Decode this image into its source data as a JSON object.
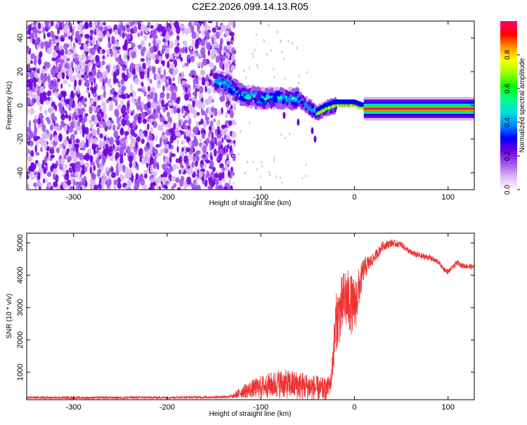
{
  "title": "C2E2.2026.099.14.13.R05",
  "chart_data": [
    {
      "type": "heatmap",
      "name": "spectrogram",
      "xlabel": "Height of straight line (km)",
      "ylabel": "Frequency (Hz)",
      "xlim": [
        -350,
        128
      ],
      "ylim": [
        -50,
        50
      ],
      "xticks": [
        -300,
        -200,
        -100,
        0,
        100
      ],
      "yticks": [
        -40,
        -20,
        0,
        20,
        40
      ],
      "colorbar": {
        "label": "Normalized spectral amplitude",
        "range": [
          0.0,
          1.0
        ],
        "ticks": [
          0.0,
          0.2,
          0.4,
          0.6,
          0.8
        ],
        "colors": [
          "#ffffff",
          "#d9b8f5",
          "#a054f0",
          "#7000e0",
          "#0000ff",
          "#0090ff",
          "#00e0e0",
          "#00ff80",
          "#00ff00",
          "#a0ff00",
          "#ffff00",
          "#ff9000",
          "#ff0000",
          "#ff0070"
        ]
      },
      "regions": [
        {
          "description": "noise",
          "x": [
            -350,
            -140
          ],
          "freq": [
            -50,
            50
          ],
          "amplitude": [
            0.0,
            0.15
          ]
        },
        {
          "description": "scattered signal",
          "x": [
            -140,
            -20
          ],
          "freq": [
            -20,
            15
          ],
          "amplitude": [
            0.1,
            0.5
          ]
        },
        {
          "description": "carrier",
          "x": [
            0,
            128
          ],
          "freq": [
            -2,
            2
          ],
          "amplitude": [
            0.9,
            1.0
          ]
        }
      ],
      "ridge": {
        "x": [
          -150,
          -135,
          -120,
          -100,
          -80,
          -60,
          -50,
          -40,
          -30,
          -20,
          -10,
          0,
          10,
          128
        ],
        "freq": [
          15,
          12,
          6,
          4,
          4,
          4,
          0,
          -5,
          -2,
          0,
          0,
          0,
          -2,
          -2
        ]
      }
    },
    {
      "type": "line",
      "name": "snr",
      "xlabel": "Height of straight line (km)",
      "ylabel": "SNR (10 * v/v)",
      "xlim": [
        -350,
        128
      ],
      "ylim": [
        150,
        5300
      ],
      "xticks": [
        -300,
        -200,
        -100,
        0,
        100
      ],
      "yticks": [
        1000,
        2000,
        3000,
        4000,
        5000
      ],
      "series": [
        {
          "name": "SNR",
          "color": "#ee3333",
          "x": [
            -350,
            -300,
            -250,
            -200,
            -150,
            -130,
            -120,
            -100,
            -80,
            -60,
            -40,
            -30,
            -25,
            -20,
            -10,
            0,
            10,
            20,
            30,
            40,
            50,
            60,
            70,
            80,
            90,
            95,
            100,
            105,
            110,
            115,
            128
          ],
          "y": [
            220,
            210,
            215,
            220,
            230,
            250,
            400,
            550,
            650,
            600,
            500,
            450,
            700,
            2500,
            3300,
            3000,
            4200,
            4500,
            4900,
            5000,
            4950,
            4700,
            4600,
            4550,
            4400,
            4200,
            4100,
            4250,
            4400,
            4300,
            4250
          ],
          "noise_amplitude": [
            40,
            40,
            40,
            40,
            40,
            60,
            200,
            350,
            450,
            450,
            400,
            350,
            300,
            900,
            1000,
            900,
            350,
            180,
            150,
            120,
            100,
            100,
            100,
            90,
            80,
            80,
            80,
            80,
            80,
            80,
            80
          ]
        }
      ]
    }
  ]
}
